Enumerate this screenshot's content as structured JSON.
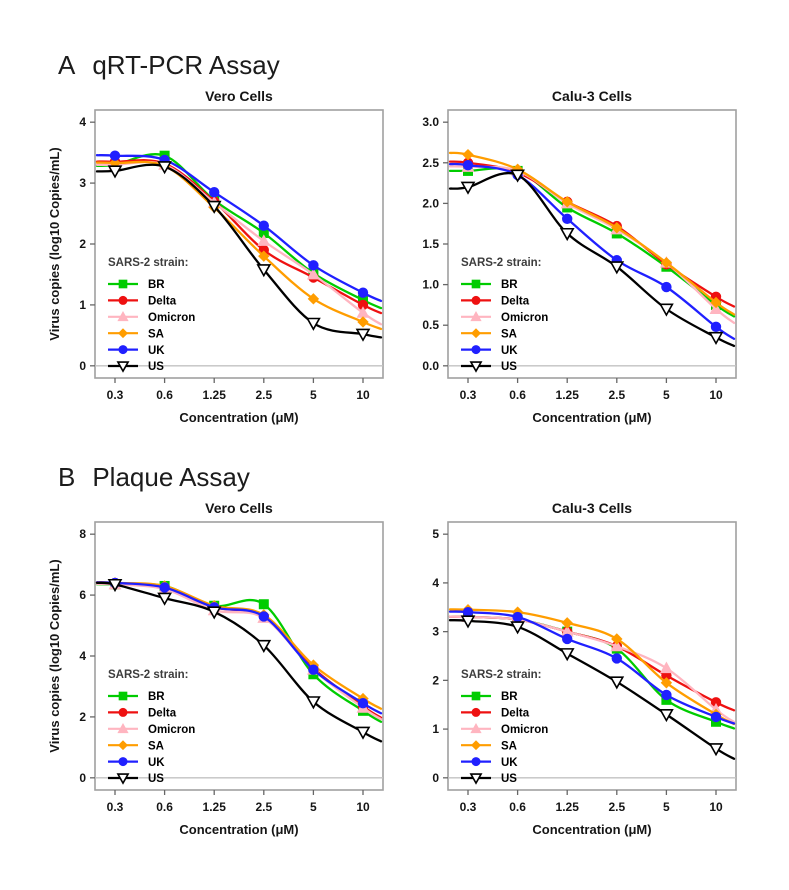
{
  "page": {
    "background": "#ffffff"
  },
  "sections": [
    {
      "label": "A",
      "title": "qRT-PCR Assay"
    },
    {
      "label": "B",
      "title": "Plaque Assay"
    }
  ],
  "legend": {
    "title": "SARS-2 strain:",
    "items": [
      "BR",
      "Delta",
      "Omicron",
      "SA",
      "UK",
      "US"
    ]
  },
  "colors": {
    "BR": "#00cc00",
    "Delta": "#ee1111",
    "Omicron": "#ffb5c0",
    "SA": "#ff9d00",
    "UK": "#2020ff",
    "US": "#000000",
    "box_border": "#a0a0a0",
    "zero_line": "#c2c2c2"
  },
  "chart_data": [
    {
      "type": "line",
      "section": "A",
      "title": "Vero Cells",
      "xlabel": "Concentration (μM)",
      "ylabel": "Virus copies (log10 Copies/mL)",
      "show_ylabel": true,
      "categories": [
        "0.3",
        "0.6",
        "1.25",
        "2.5",
        "5",
        "10"
      ],
      "yticks": [
        0,
        1,
        2,
        3,
        4
      ],
      "ytick_labels": [
        "0",
        "1",
        "2",
        "3",
        "4"
      ],
      "ylim": [
        -0.2,
        4.2
      ],
      "legend_title": "SARS-2 strain:",
      "legend_position": "bottom-left-inside",
      "grid": false,
      "series": [
        {
          "name": "BR",
          "color": "#00cc00",
          "marker": "square",
          "open": false,
          "values": [
            3.3,
            3.45,
            2.72,
            2.18,
            1.52,
            1.08
          ]
        },
        {
          "name": "Delta",
          "color": "#ee1111",
          "marker": "circle",
          "open": false,
          "values": [
            3.35,
            3.32,
            2.7,
            1.9,
            1.45,
            1.0
          ]
        },
        {
          "name": "Omicron",
          "color": "#ffb5c0",
          "marker": "triangle-up",
          "open": false,
          "values": [
            3.3,
            3.3,
            2.68,
            2.05,
            1.5,
            0.87
          ]
        },
        {
          "name": "SA",
          "color": "#ff9d00",
          "marker": "diamond",
          "open": false,
          "values": [
            3.33,
            3.28,
            2.6,
            1.8,
            1.1,
            0.72
          ]
        },
        {
          "name": "UK",
          "color": "#2020ff",
          "marker": "circle",
          "open": false,
          "values": [
            3.45,
            3.38,
            2.85,
            2.3,
            1.65,
            1.2
          ]
        },
        {
          "name": "US",
          "color": "#000000",
          "marker": "triangle-down",
          "open": true,
          "values": [
            3.2,
            3.27,
            2.62,
            1.58,
            0.7,
            0.52
          ]
        }
      ]
    },
    {
      "type": "line",
      "section": "A",
      "title": "Calu-3 Cells",
      "xlabel": "Concentration (μM)",
      "ylabel": "",
      "show_ylabel": false,
      "categories": [
        "0.3",
        "0.6",
        "1.25",
        "2.5",
        "5",
        "10"
      ],
      "yticks": [
        0,
        0.5,
        1,
        1.5,
        2,
        2.5,
        3
      ],
      "ytick_labels": [
        "0.0",
        "0.5",
        "1.0",
        "1.5",
        "2.0",
        "2.5",
        "3.0"
      ],
      "ylim": [
        -0.15,
        3.15
      ],
      "legend_title": "SARS-2 strain:",
      "legend_position": "bottom-left-inside",
      "grid": false,
      "series": [
        {
          "name": "BR",
          "color": "#00cc00",
          "marker": "square",
          "open": false,
          "values": [
            2.4,
            2.4,
            1.95,
            1.63,
            1.22,
            0.75
          ]
        },
        {
          "name": "Delta",
          "color": "#ee1111",
          "marker": "circle",
          "open": false,
          "values": [
            2.5,
            2.38,
            2.02,
            1.72,
            1.25,
            0.85
          ]
        },
        {
          "name": "Omicron",
          "color": "#ffb5c0",
          "marker": "triangle-up",
          "open": false,
          "values": [
            2.45,
            2.4,
            2.0,
            1.68,
            1.27,
            0.7
          ]
        },
        {
          "name": "SA",
          "color": "#ff9d00",
          "marker": "diamond",
          "open": false,
          "values": [
            2.6,
            2.42,
            2.02,
            1.7,
            1.27,
            0.78
          ]
        },
        {
          "name": "UK",
          "color": "#2020ff",
          "marker": "circle",
          "open": false,
          "values": [
            2.47,
            2.35,
            1.81,
            1.3,
            0.97,
            0.48
          ]
        },
        {
          "name": "US",
          "color": "#000000",
          "marker": "triangle-down",
          "open": true,
          "values": [
            2.2,
            2.35,
            1.63,
            1.22,
            0.7,
            0.35
          ]
        }
      ]
    },
    {
      "type": "line",
      "section": "B",
      "title": "Vero Cells",
      "xlabel": "Concentration (μM)",
      "ylabel": "Virus copies (log10 Copies/mL)",
      "show_ylabel": true,
      "categories": [
        "0.3",
        "0.6",
        "1.25",
        "2.5",
        "5",
        "10"
      ],
      "yticks": [
        0,
        2,
        4,
        6,
        8
      ],
      "ytick_labels": [
        "0",
        "2",
        "4",
        "6",
        "8"
      ],
      "ylim": [
        -0.4,
        8.4
      ],
      "legend_title": "SARS-2 strain:",
      "legend_position": "bottom-left-inside",
      "grid": false,
      "series": [
        {
          "name": "BR",
          "color": "#00cc00",
          "marker": "square",
          "open": false,
          "values": [
            6.35,
            6.3,
            5.65,
            5.7,
            3.4,
            2.2
          ]
        },
        {
          "name": "Delta",
          "color": "#ee1111",
          "marker": "circle",
          "open": false,
          "values": [
            6.4,
            6.25,
            5.6,
            5.3,
            3.6,
            2.35
          ]
        },
        {
          "name": "Omicron",
          "color": "#ffb5c0",
          "marker": "triangle-up",
          "open": false,
          "values": [
            6.35,
            6.2,
            5.5,
            5.25,
            3.55,
            2.3
          ]
        },
        {
          "name": "SA",
          "color": "#ff9d00",
          "marker": "diamond",
          "open": false,
          "values": [
            6.4,
            6.3,
            5.65,
            5.35,
            3.7,
            2.6
          ]
        },
        {
          "name": "UK",
          "color": "#2020ff",
          "marker": "circle",
          "open": false,
          "values": [
            6.4,
            6.25,
            5.6,
            5.3,
            3.55,
            2.45
          ]
        },
        {
          "name": "US",
          "color": "#000000",
          "marker": "triangle-down",
          "open": true,
          "values": [
            6.35,
            5.9,
            5.45,
            4.35,
            2.5,
            1.5
          ]
        }
      ]
    },
    {
      "type": "line",
      "section": "B",
      "title": "Calu-3 Cells",
      "xlabel": "Concentration (μM)",
      "ylabel": "",
      "show_ylabel": false,
      "categories": [
        "0.3",
        "0.6",
        "1.25",
        "2.5",
        "5",
        "10"
      ],
      "yticks": [
        0,
        1,
        2,
        3,
        4,
        5
      ],
      "ytick_labels": [
        "0",
        "1",
        "2",
        "3",
        "4",
        "5"
      ],
      "ylim": [
        -0.25,
        5.25
      ],
      "legend_title": "SARS-2 strain:",
      "legend_position": "bottom-left-inside",
      "grid": false,
      "series": [
        {
          "name": "BR",
          "color": "#00cc00",
          "marker": "square",
          "open": false,
          "values": [
            3.3,
            3.25,
            3.0,
            2.65,
            1.6,
            1.15
          ]
        },
        {
          "name": "Delta",
          "color": "#ee1111",
          "marker": "circle",
          "open": false,
          "values": [
            3.3,
            3.25,
            3.0,
            2.7,
            2.1,
            1.55
          ]
        },
        {
          "name": "Omicron",
          "color": "#ffb5c0",
          "marker": "triangle-up",
          "open": false,
          "values": [
            3.3,
            3.25,
            3.0,
            2.7,
            2.25,
            1.4
          ]
        },
        {
          "name": "SA",
          "color": "#ff9d00",
          "marker": "diamond",
          "open": false,
          "values": [
            3.45,
            3.4,
            3.18,
            2.85,
            1.95,
            1.3
          ]
        },
        {
          "name": "UK",
          "color": "#2020ff",
          "marker": "circle",
          "open": false,
          "values": [
            3.4,
            3.3,
            2.85,
            2.45,
            1.7,
            1.25
          ]
        },
        {
          "name": "US",
          "color": "#000000",
          "marker": "triangle-down",
          "open": true,
          "values": [
            3.22,
            3.1,
            2.55,
            1.97,
            1.3,
            0.6
          ]
        }
      ]
    }
  ]
}
